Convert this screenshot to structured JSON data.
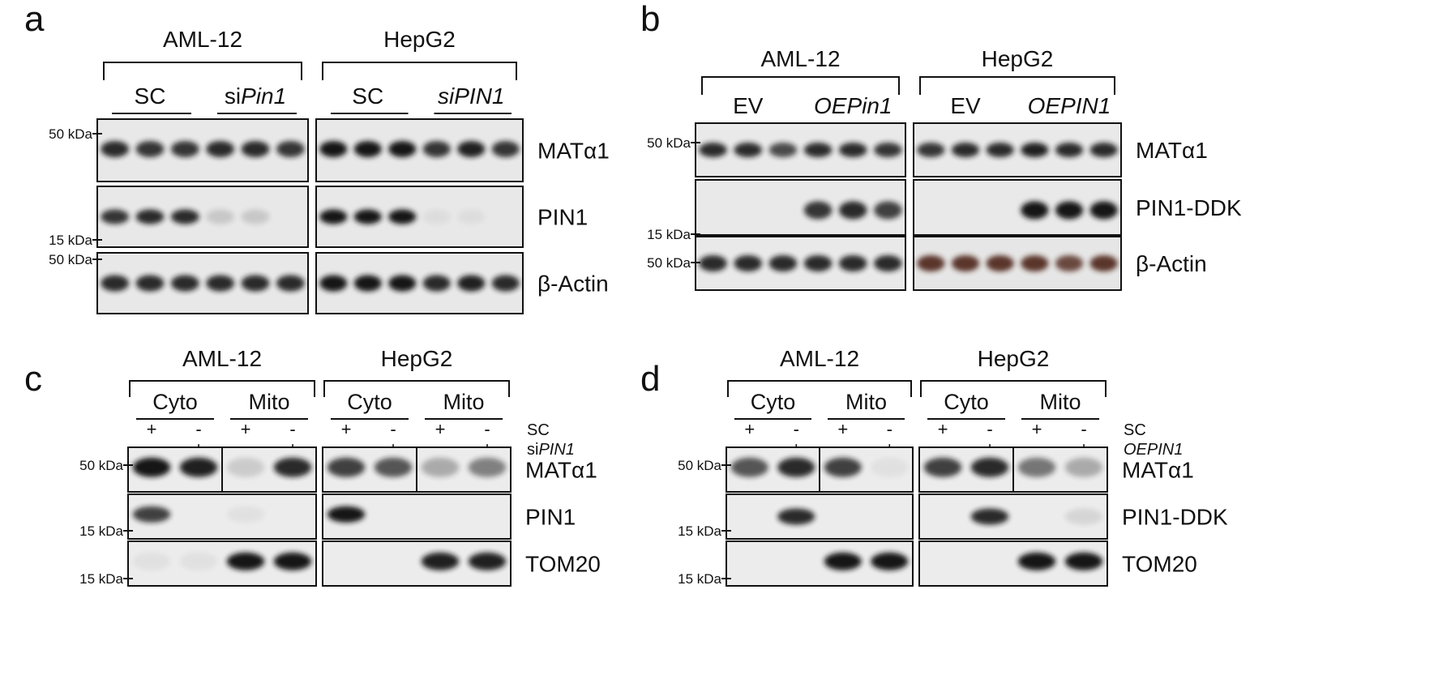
{
  "figure": {
    "panel_a": {
      "letter": "a",
      "groups": [
        "AML-12",
        "HepG2"
      ],
      "conditions": [
        {
          "pre": "SC",
          "ital": ""
        },
        {
          "pre": "si",
          "ital": "Pin1"
        },
        {
          "pre": "SC",
          "ital": ""
        },
        {
          "pre": "",
          "ital": "siPIN1"
        }
      ],
      "blots": [
        "MATα1",
        "PIN1",
        "β-Actin"
      ],
      "markers": [
        "50 kDa",
        "15 kDa",
        "50 kDa"
      ],
      "intensity": {
        "MATα1": [
          0.9,
          0.85,
          0.85,
          0.9,
          0.9,
          0.85,
          1,
          1,
          1,
          0.85,
          0.95,
          0.85
        ],
        "PIN1": [
          0.85,
          0.9,
          0.9,
          0.15,
          0.15,
          0,
          1,
          1,
          1,
          0.05,
          0.05,
          0
        ],
        "β-Actin": [
          0.9,
          0.9,
          0.9,
          0.9,
          0.9,
          0.9,
          1,
          1,
          1,
          0.9,
          0.95,
          0.9
        ]
      }
    },
    "panel_b": {
      "letter": "b",
      "groups": [
        "AML-12",
        "HepG2"
      ],
      "conditions": [
        {
          "pre": "EV",
          "ital": ""
        },
        {
          "pre": "",
          "ital": "OEPin1"
        },
        {
          "pre": "EV",
          "ital": ""
        },
        {
          "pre": "",
          "ital": "OEPIN1"
        }
      ],
      "blots": [
        "MATα1",
        "PIN1-DDK",
        "β-Actin"
      ],
      "markers": [
        "50 kDa",
        "15 kDa",
        "50 kDa"
      ],
      "intensity": {
        "MATα1": [
          0.9,
          0.9,
          0.75,
          0.9,
          0.9,
          0.85,
          0.85,
          0.9,
          0.9,
          0.95,
          0.9,
          0.9
        ],
        "PIN1-DDK": [
          0,
          0,
          0,
          0.85,
          0.9,
          0.8,
          0,
          0,
          0,
          1,
          1,
          1
        ],
        "β-Actin": [
          0.9,
          0.9,
          0.9,
          0.9,
          0.9,
          0.9,
          0.9,
          0.9,
          0.9,
          0.9,
          0.8,
          0.9
        ]
      }
    },
    "panel_c": {
      "letter": "c",
      "groups": [
        "AML-12",
        "HepG2"
      ],
      "fractions": [
        "Cyto",
        "Mito",
        "Cyto",
        "Mito"
      ],
      "rows": [
        {
          "label": "SC",
          "ital": "",
          "pre": "",
          "signs": [
            "+",
            "-",
            "+",
            "-",
            "+",
            "-",
            "+",
            "-"
          ]
        },
        {
          "label": "",
          "pre": "si",
          "ital": "PIN1",
          "signs": [
            "-",
            "+",
            "-",
            "+",
            "-",
            "+",
            "-",
            "+"
          ]
        }
      ],
      "blots": [
        "MATα1",
        "PIN1",
        "TOM20"
      ],
      "markers": [
        "50 kDa",
        "15 kDa",
        "15 kDa"
      ],
      "intensity": {
        "MATα1": [
          1,
          0.95,
          0.15,
          0.9,
          0.8,
          0.7,
          0.3,
          0.5
        ],
        "PIN1": [
          0.8,
          0,
          0.05,
          0,
          1,
          0,
          0,
          0
        ],
        "TOM20": [
          0.05,
          0.05,
          1,
          1,
          0,
          0,
          0.95,
          0.95
        ]
      }
    },
    "panel_d": {
      "letter": "d",
      "groups": [
        "AML-12",
        "HepG2"
      ],
      "fractions": [
        "Cyto",
        "Mito",
        "Cyto",
        "Mito"
      ],
      "rows": [
        {
          "label": "SC",
          "pre": "",
          "ital": "",
          "signs": [
            "+",
            "-",
            "+",
            "-",
            "+",
            "-",
            "+",
            "-"
          ]
        },
        {
          "label": "",
          "pre": "",
          "ital": "OEPIN1",
          "signs": [
            "-",
            "+",
            "-",
            "+",
            "-",
            "+",
            "-",
            "+"
          ]
        }
      ],
      "blots": [
        "MATα1",
        "PIN1-DDK",
        "TOM20"
      ],
      "markers": [
        "50 kDa",
        "15 kDa",
        "15 kDa"
      ],
      "intensity": {
        "MATα1": [
          0.7,
          0.9,
          0.8,
          0.05,
          0.8,
          0.9,
          0.55,
          0.3
        ],
        "PIN1-DDK": [
          0,
          0.9,
          0,
          0,
          0,
          0.9,
          0,
          0.1
        ],
        "TOM20": [
          0,
          0,
          1,
          1,
          0,
          0,
          1,
          1
        ]
      }
    }
  }
}
